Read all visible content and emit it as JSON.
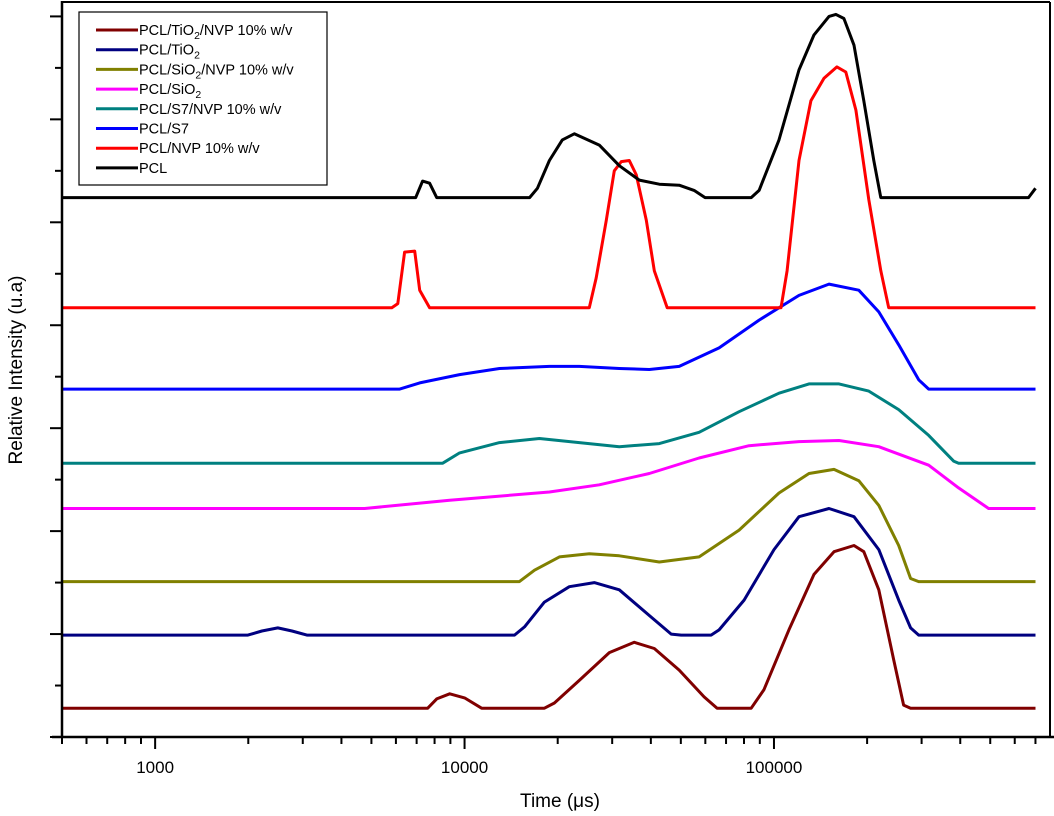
{
  "chart_data": {
    "type": "line",
    "title": "",
    "xlabel": "Time (μs)",
    "ylabel": "Relative Intensity (u.a)",
    "xscale": "log",
    "xlim": [
      500,
      780000
    ],
    "ylim": [
      0,
      7.14
    ],
    "x_ticks": [
      {
        "value": 1000,
        "label": "1000"
      },
      {
        "value": 10000,
        "label": "10000"
      },
      {
        "value": 100000,
        "label": "100000"
      }
    ],
    "y_major_ticks": [
      0,
      1,
      2,
      3,
      4,
      5,
      6,
      7
    ],
    "y_minor_ticks": [
      0.5,
      1.5,
      2.5,
      3.5,
      4.5,
      5.5,
      6.5
    ],
    "y_tick_labels_shown": false,
    "grid": false,
    "legend_position": "top-left",
    "series": [
      {
        "name": "PCL/TiO2/NVP 10% w/v",
        "label_parts": [
          "PCL/TiO",
          "2",
          "/NVP 10% w/v"
        ],
        "color": "#800000",
        "points": [
          [
            501,
            0.28
          ],
          [
            7600,
            0.28
          ],
          [
            8130,
            0.37
          ],
          [
            8950,
            0.42
          ],
          [
            10000,
            0.38
          ],
          [
            11350,
            0.28
          ],
          [
            18120,
            0.28
          ],
          [
            19510,
            0.33
          ],
          [
            23490,
            0.55
          ],
          [
            29370,
            0.82
          ],
          [
            35370,
            0.92
          ],
          [
            41040,
            0.86
          ],
          [
            49400,
            0.65
          ],
          [
            59450,
            0.39
          ],
          [
            65470,
            0.28
          ],
          [
            84400,
            0.28
          ],
          [
            92880,
            0.46
          ],
          [
            111750,
            1.04
          ],
          [
            134660,
            1.58
          ],
          [
            156300,
            1.8
          ],
          [
            181400,
            1.86
          ],
          [
            195100,
            1.8
          ],
          [
            218100,
            1.43
          ],
          [
            243700,
            0.75
          ],
          [
            262400,
            0.31
          ],
          [
            276400,
            0.28
          ],
          [
            700000,
            0.28
          ]
        ]
      },
      {
        "name": "PCL/TiO2",
        "label_parts": [
          "PCL/TiO",
          "2",
          ""
        ],
        "color": "#000080",
        "points": [
          [
            501,
            0.99
          ],
          [
            1995,
            0.99
          ],
          [
            2213,
            1.03
          ],
          [
            2492,
            1.06
          ],
          [
            2768,
            1.03
          ],
          [
            3093,
            0.99
          ],
          [
            14500,
            0.99
          ],
          [
            15620,
            1.07
          ],
          [
            18120,
            1.31
          ],
          [
            21810,
            1.46
          ],
          [
            26270,
            1.5
          ],
          [
            31630,
            1.43
          ],
          [
            39540,
            1.18
          ],
          [
            46540,
            1.0
          ],
          [
            50130,
            0.99
          ],
          [
            62610,
            0.99
          ],
          [
            66470,
            1.04
          ],
          [
            80040,
            1.33
          ],
          [
            100000,
            1.82
          ],
          [
            120450,
            2.14
          ],
          [
            150610,
            2.22
          ],
          [
            181400,
            2.14
          ],
          [
            218100,
            1.82
          ],
          [
            252900,
            1.33
          ],
          [
            276400,
            1.06
          ],
          [
            293500,
            0.99
          ],
          [
            700000,
            0.99
          ]
        ]
      },
      {
        "name": "PCL/SiO2/NVP 10% w/v",
        "label_parts": [
          "PCL/SiO",
          "2",
          "/NVP 10% w/v"
        ],
        "color": "#808000",
        "points": [
          [
            501,
            1.51
          ],
          [
            15040,
            1.51
          ],
          [
            16830,
            1.62
          ],
          [
            20250,
            1.75
          ],
          [
            25310,
            1.78
          ],
          [
            31630,
            1.76
          ],
          [
            42590,
            1.7
          ],
          [
            57280,
            1.75
          ],
          [
            77130,
            2.01
          ],
          [
            103780,
            2.37
          ],
          [
            129820,
            2.56
          ],
          [
            156300,
            2.6
          ],
          [
            188000,
            2.49
          ],
          [
            218100,
            2.25
          ],
          [
            252900,
            1.86
          ],
          [
            276400,
            1.54
          ],
          [
            293500,
            1.51
          ],
          [
            700000,
            1.51
          ]
        ]
      },
      {
        "name": "PCL/SiO2",
        "label_parts": [
          "PCL/SiO",
          "2",
          ""
        ],
        "color": "#ff00ff",
        "points": [
          [
            501,
            2.22
          ],
          [
            4756,
            2.22
          ],
          [
            8950,
            2.3
          ],
          [
            18800,
            2.38
          ],
          [
            27260,
            2.45
          ],
          [
            39540,
            2.56
          ],
          [
            57280,
            2.71
          ],
          [
            83060,
            2.83
          ],
          [
            120450,
            2.87
          ],
          [
            162200,
            2.88
          ],
          [
            218100,
            2.82
          ],
          [
            316200,
            2.64
          ],
          [
            395200,
            2.42
          ],
          [
            493900,
            2.22
          ],
          [
            700000,
            2.22
          ]
        ]
      },
      {
        "name": "PCL/S7/NVP 10% w/v",
        "label_parts": [
          "PCL/S7/NVP 10% w/v"
        ],
        "color": "#008080",
        "points": [
          [
            501,
            2.66
          ],
          [
            8500,
            2.66
          ],
          [
            9640,
            2.76
          ],
          [
            12970,
            2.86
          ],
          [
            17450,
            2.9
          ],
          [
            23490,
            2.86
          ],
          [
            31630,
            2.82
          ],
          [
            42590,
            2.85
          ],
          [
            57280,
            2.96
          ],
          [
            77130,
            3.16
          ],
          [
            103780,
            3.34
          ],
          [
            129820,
            3.43
          ],
          [
            162200,
            3.43
          ],
          [
            202500,
            3.36
          ],
          [
            252900,
            3.18
          ],
          [
            316200,
            2.93
          ],
          [
            380800,
            2.68
          ],
          [
            395200,
            2.66
          ],
          [
            700000,
            2.66
          ]
        ]
      },
      {
        "name": "PCL/S7",
        "label_parts": [
          "PCL/S7"
        ],
        "color": "#0000ff",
        "points": [
          [
            501,
            3.38
          ],
          [
            6170,
            3.38
          ],
          [
            7160,
            3.44
          ],
          [
            9640,
            3.52
          ],
          [
            12970,
            3.58
          ],
          [
            18800,
            3.6
          ],
          [
            23490,
            3.6
          ],
          [
            31630,
            3.58
          ],
          [
            39540,
            3.57
          ],
          [
            49400,
            3.6
          ],
          [
            66470,
            3.78
          ],
          [
            89500,
            4.05
          ],
          [
            120450,
            4.29
          ],
          [
            150610,
            4.4
          ],
          [
            188000,
            4.34
          ],
          [
            218100,
            4.13
          ],
          [
            252900,
            3.81
          ],
          [
            293500,
            3.47
          ],
          [
            316200,
            3.38
          ],
          [
            700000,
            3.38
          ]
        ]
      },
      {
        "name": "PCL/NVP 10% w/v",
        "label_parts": [
          "PCL/NVP 10% w/v"
        ],
        "color": "#ff0000",
        "points": [
          [
            501,
            4.17
          ],
          [
            5818,
            4.17
          ],
          [
            6086,
            4.21
          ],
          [
            6400,
            4.71
          ],
          [
            6900,
            4.72
          ],
          [
            7160,
            4.34
          ],
          [
            7710,
            4.17
          ],
          [
            25310,
            4.17
          ],
          [
            26640,
            4.46
          ],
          [
            28720,
            5.02
          ],
          [
            30480,
            5.5
          ],
          [
            32100,
            5.59
          ],
          [
            34080,
            5.6
          ],
          [
            35900,
            5.46
          ],
          [
            38660,
            5.02
          ],
          [
            41040,
            4.53
          ],
          [
            45190,
            4.17
          ],
          [
            105330,
            4.17
          ],
          [
            110260,
            4.53
          ],
          [
            120450,
            5.6
          ],
          [
            131600,
            6.18
          ],
          [
            145130,
            6.4
          ],
          [
            159690,
            6.51
          ],
          [
            170700,
            6.46
          ],
          [
            184000,
            6.09
          ],
          [
            202500,
            5.22
          ],
          [
            221400,
            4.53
          ],
          [
            234800,
            4.17
          ],
          [
            700000,
            4.17
          ]
        ]
      },
      {
        "name": "PCL",
        "label_parts": [
          "PCL"
        ],
        "color": "#000000",
        "points": [
          [
            501,
            5.24
          ],
          [
            6950,
            5.24
          ],
          [
            7320,
            5.4
          ],
          [
            7710,
            5.38
          ],
          [
            8130,
            5.24
          ],
          [
            16220,
            5.24
          ],
          [
            17190,
            5.33
          ],
          [
            18800,
            5.6
          ],
          [
            20700,
            5.8
          ],
          [
            22630,
            5.86
          ],
          [
            27260,
            5.75
          ],
          [
            31630,
            5.55
          ],
          [
            36700,
            5.41
          ],
          [
            42590,
            5.37
          ],
          [
            49400,
            5.36
          ],
          [
            55200,
            5.31
          ],
          [
            59890,
            5.24
          ],
          [
            84400,
            5.24
          ],
          [
            89500,
            5.31
          ],
          [
            103780,
            5.8
          ],
          [
            120450,
            6.48
          ],
          [
            134660,
            6.82
          ],
          [
            150610,
            7.0
          ],
          [
            158500,
            7.02
          ],
          [
            168320,
            6.98
          ],
          [
            181400,
            6.72
          ],
          [
            195100,
            6.18
          ],
          [
            210200,
            5.6
          ],
          [
            221400,
            5.24
          ],
          [
            664800,
            5.24
          ],
          [
            700000,
            5.33
          ]
        ]
      }
    ]
  }
}
